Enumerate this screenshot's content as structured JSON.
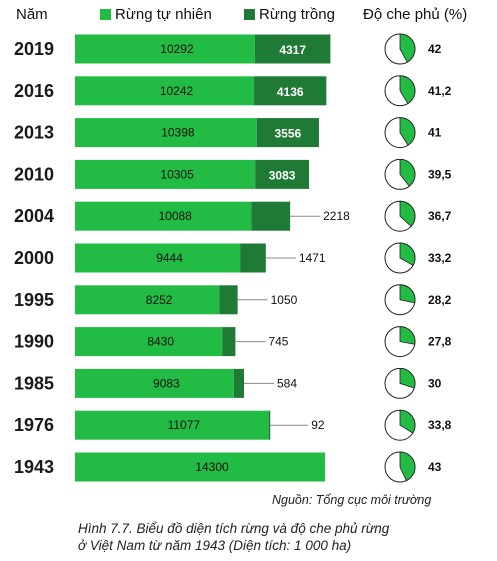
{
  "header": {
    "year_label": "Năm",
    "cover_label": "Độ che phủ (%)"
  },
  "legend": [
    {
      "name": "Rừng tự nhiên",
      "color": "#22bb44"
    },
    {
      "name": "Rừng trồng",
      "color": "#1f7a36"
    }
  ],
  "chart_data": {
    "type": "bar",
    "orientation": "horizontal",
    "stacked": true,
    "categories": [
      "2019",
      "2016",
      "2013",
      "2010",
      "2004",
      "2000",
      "1995",
      "1990",
      "1985",
      "1976",
      "1943"
    ],
    "series": [
      {
        "name": "Rừng tự nhiên",
        "values": [
          10292,
          10242,
          10398,
          10305,
          10088,
          9444,
          8252,
          8430,
          9083,
          11077,
          14300
        ]
      },
      {
        "name": "Rừng trồng",
        "values": [
          4317,
          4136,
          3556,
          3083,
          2218,
          1471,
          1050,
          745,
          584,
          92,
          null
        ]
      }
    ],
    "cover_percent": [
      "42",
      "41,2",
      "41",
      "39,5",
      "36,7",
      "33,2",
      "28,2",
      "27,8",
      "30",
      "33,8",
      "43"
    ],
    "cover_values": [
      42,
      41.2,
      41,
      39.5,
      36.7,
      33.2,
      28.2,
      27.8,
      30,
      33.8,
      43
    ]
  },
  "source": "Nguồn: Tổng cục môi trường",
  "caption": [
    "Hình 7.7. Biểu đồ diện tích rừng và độ che phủ rừng",
    "ở Việt Nam từ năm 1943 (Diện tích: 1 000 ha)"
  ]
}
